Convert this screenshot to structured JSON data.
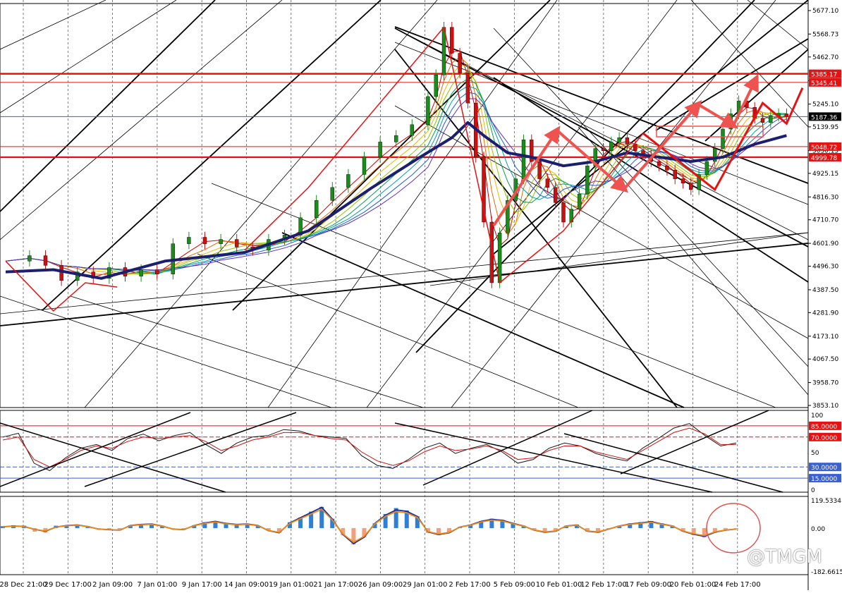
{
  "watermark": "@TMGM",
  "colors": {
    "bull": "#1a8c1a",
    "bear": "#cc1010",
    "red_line": "#e81010",
    "blue_line": "#1f2a8a",
    "ma_thick": "#1b1f6e",
    "level_blue": "#3a5fd0"
  },
  "chart_data": [
    {
      "type": "line",
      "panel": "price",
      "yrange": [
        3853.1,
        5677.1
      ],
      "yticks": [
        "5677.10",
        "5568.73",
        "5462.70",
        "5352.93",
        "5245.10",
        "5139.95",
        "5030.15",
        "4925.15",
        "4816.30",
        "4710.70",
        "4601.90",
        "4496.30",
        "4387.50",
        "4281.90",
        "4173.10",
        "4067.50",
        "3958.70",
        "3853.10"
      ],
      "xticks": [
        "28 Dec 21:00",
        "29 Dec 17:00",
        "2 Jan 09:00",
        "7 Jan 01:00",
        "9 Jan 17:00",
        "14 Jan 09:00",
        "19 Jan 01:00",
        "21 Jan 17:00",
        "26 Jan 09:00",
        "29 Jan 01:00",
        "2 Feb 17:00",
        "5 Feb 09:00",
        "10 Feb 01:00",
        "12 Feb 17:00",
        "17 Feb 09:00",
        "20 Feb 01:00",
        "24 Feb 17:00"
      ],
      "level_labels": [
        {
          "text": "5385.17",
          "value": 5385.17,
          "style": "red"
        },
        {
          "text": "5345.41",
          "value": 5345.41,
          "style": "red"
        },
        {
          "text": "5187.36",
          "value": 5187.36,
          "style": "current"
        },
        {
          "text": "5048.72",
          "value": 5048.72,
          "style": "red"
        },
        {
          "text": "4999.78",
          "value": 4999.78,
          "style": "red"
        }
      ],
      "price_path": [
        [
          0,
          4520
        ],
        [
          3,
          4545
        ],
        [
          5,
          4500
        ],
        [
          7,
          4430
        ],
        [
          9,
          4470
        ],
        [
          11,
          4440
        ],
        [
          13,
          4490
        ],
        [
          15,
          4450
        ],
        [
          17,
          4480
        ],
        [
          19,
          4460
        ],
        [
          21,
          4600
        ],
        [
          23,
          4630
        ],
        [
          25,
          4600
        ],
        [
          27,
          4620
        ],
        [
          29,
          4585
        ],
        [
          31,
          4570
        ],
        [
          33,
          4620
        ],
        [
          35,
          4640
        ],
        [
          37,
          4720
        ],
        [
          39,
          4800
        ],
        [
          41,
          4860
        ],
        [
          43,
          4920
        ],
        [
          45,
          5000
        ],
        [
          47,
          5070
        ],
        [
          49,
          5100
        ],
        [
          51,
          5150
        ],
        [
          53,
          5280
        ],
        [
          54,
          5380
        ],
        [
          55,
          5600
        ],
        [
          56,
          5480
        ],
        [
          57,
          5390
        ],
        [
          58,
          5250
        ],
        [
          59,
          5000
        ],
        [
          60,
          4700
        ],
        [
          61,
          4420
        ],
        [
          62,
          4650
        ],
        [
          63,
          4800
        ],
        [
          64,
          4900
        ],
        [
          65,
          5080
        ],
        [
          66,
          4980
        ],
        [
          67,
          4900
        ],
        [
          68,
          4860
        ],
        [
          69,
          4790
        ],
        [
          70,
          4700
        ],
        [
          71,
          4760
        ],
        [
          72,
          4830
        ],
        [
          73,
          4960
        ],
        [
          74,
          5040
        ],
        [
          75,
          5030
        ],
        [
          76,
          5070
        ],
        [
          77,
          5090
        ],
        [
          78,
          5060
        ],
        [
          79,
          5030
        ],
        [
          80,
          5010
        ],
        [
          81,
          4980
        ],
        [
          82,
          4960
        ],
        [
          83,
          4940
        ],
        [
          84,
          4900
        ],
        [
          85,
          4880
        ],
        [
          86,
          4850
        ],
        [
          87,
          4920
        ],
        [
          88,
          4980
        ],
        [
          89,
          5040
        ],
        [
          90,
          5130
        ],
        [
          91,
          5200
        ],
        [
          92,
          5260
        ],
        [
          93,
          5230
        ],
        [
          94,
          5180
        ],
        [
          95,
          5160
        ],
        [
          96,
          5190
        ],
        [
          97,
          5200
        ],
        [
          98,
          5187
        ]
      ],
      "ma_thick": [
        [
          0,
          4470
        ],
        [
          6,
          4480
        ],
        [
          12,
          4440
        ],
        [
          20,
          4520
        ],
        [
          30,
          4560
        ],
        [
          38,
          4660
        ],
        [
          46,
          4860
        ],
        [
          52,
          5000
        ],
        [
          56,
          5090
        ],
        [
          58,
          5160
        ],
        [
          60,
          5100
        ],
        [
          63,
          5020
        ],
        [
          66,
          5000
        ],
        [
          70,
          4960
        ],
        [
          74,
          4980
        ],
        [
          78,
          5020
        ],
        [
          82,
          5000
        ],
        [
          86,
          4980
        ],
        [
          90,
          5000
        ],
        [
          94,
          5060
        ],
        [
          98,
          5100
        ]
      ],
      "waves": [
        [
          [
            0,
            4520
          ],
          [
            6,
            4290
          ],
          [
            10,
            4420
          ],
          [
            14,
            4400
          ]
        ],
        [
          [
            30,
            4570
          ],
          [
            38,
            4860
          ],
          [
            55,
            5600
          ],
          [
            62,
            4420
          ],
          [
            70,
            4660
          ],
          [
            80,
            5110
          ]
        ],
        [
          [
            80,
            5110
          ],
          [
            89,
            4850
          ],
          [
            95,
            5250
          ],
          [
            98,
            5155
          ],
          [
            100,
            5320
          ]
        ]
      ]
    },
    {
      "type": "line",
      "panel": "stochastic",
      "yrange": [
        0,
        100
      ],
      "yticks": [
        "100",
        "50",
        "0"
      ],
      "levels": [
        {
          "text": "85.0000",
          "value": 85
        },
        {
          "text": "70.0000",
          "value": 70
        },
        {
          "text": "30.0000",
          "value": 30
        },
        {
          "text": "15.0000",
          "value": 15
        }
      ],
      "series": [
        {
          "values": [
            70,
            75,
            35,
            25,
            42,
            55,
            60,
            52,
            68,
            74,
            65,
            72,
            76,
            60,
            48,
            62,
            70,
            72,
            80,
            78,
            72,
            70,
            68,
            45,
            32,
            28,
            40,
            55,
            62,
            48,
            55,
            60,
            50,
            35,
            40,
            55,
            62,
            58,
            48,
            42,
            38,
            55,
            68,
            82,
            88,
            72,
            58,
            62
          ]
        },
        {
          "values": [
            66,
            70,
            40,
            30,
            40,
            52,
            58,
            55,
            64,
            70,
            68,
            70,
            72,
            64,
            52,
            58,
            66,
            70,
            76,
            76,
            72,
            68,
            66,
            50,
            38,
            32,
            38,
            50,
            58,
            52,
            54,
            58,
            52,
            40,
            42,
            52,
            58,
            58,
            50,
            45,
            40,
            52,
            64,
            76,
            82,
            74,
            60,
            60
          ]
        }
      ]
    },
    {
      "type": "bar",
      "panel": "oscillator",
      "yrange": [
        -182.6615,
        119.5334
      ],
      "yticks": [
        "119.5334",
        "0.00",
        "-182.6615"
      ],
      "histogram": [
        8,
        12,
        10,
        -15,
        -20,
        10,
        12,
        15,
        8,
        -5,
        -8,
        -10,
        12,
        15,
        18,
        10,
        -5,
        -8,
        12,
        25,
        30,
        20,
        15,
        18,
        10,
        -10,
        -20,
        25,
        45,
        70,
        90,
        40,
        -30,
        -70,
        -40,
        20,
        60,
        85,
        75,
        50,
        -20,
        -30,
        -20,
        5,
        15,
        30,
        40,
        35,
        20,
        10,
        -10,
        -20,
        -15,
        10,
        15,
        -15,
        -20,
        -5,
        10,
        20,
        25,
        30,
        20,
        10,
        -15,
        -30,
        -40,
        -20,
        -10,
        -5
      ],
      "signal": [
        5,
        8,
        6,
        -5,
        -12,
        4,
        10,
        12,
        6,
        -4,
        -6,
        -8,
        10,
        14,
        16,
        8,
        -4,
        -6,
        10,
        20,
        26,
        18,
        14,
        16,
        10,
        -10,
        -18,
        20,
        40,
        60,
        80,
        35,
        -25,
        -60,
        -35,
        18,
        50,
        70,
        65,
        45,
        -15,
        -25,
        -18,
        4,
        12,
        26,
        34,
        30,
        18,
        8,
        -8,
        -16,
        -12,
        8,
        12,
        -12,
        -16,
        -4,
        8,
        16,
        20,
        25,
        16,
        8,
        -12,
        -24,
        -32,
        -16,
        -8,
        -4
      ]
    }
  ]
}
